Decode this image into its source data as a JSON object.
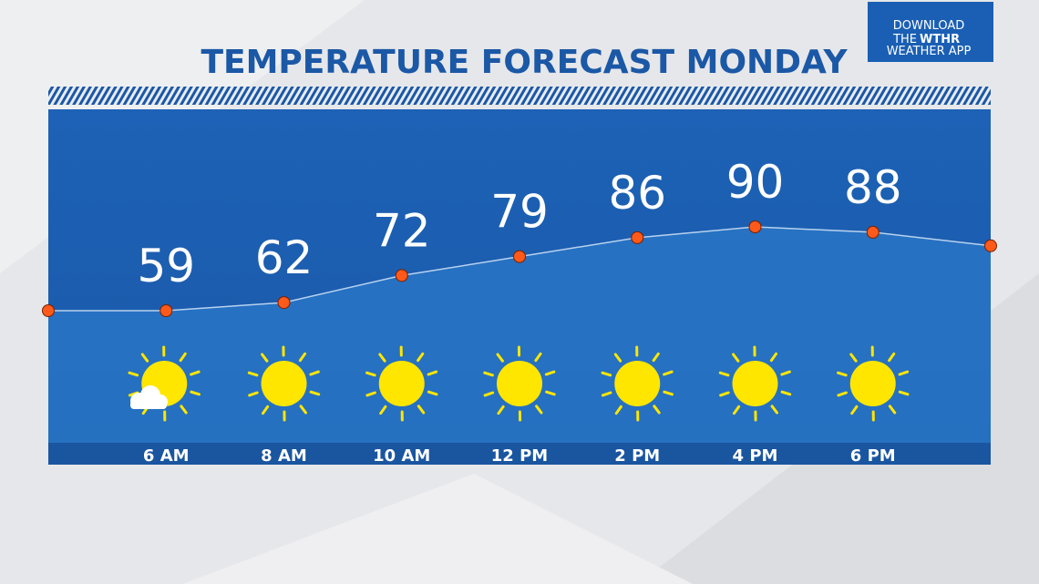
{
  "chart_data": {
    "type": "line",
    "title": "TEMPERATURE FORECAST MONDAY",
    "categories": [
      null,
      "6 AM",
      "8 AM",
      "10 AM",
      "12 PM",
      "2 PM",
      "4 PM",
      "6 PM",
      null
    ],
    "values": [
      59,
      59,
      62,
      72,
      79,
      86,
      90,
      88,
      83
    ],
    "color": "#ff5a1a"
  },
  "badge": {
    "line1": "DOWNLOAD",
    "line2": "THE",
    "brand": "WTHR",
    "line3": "WEATHER APP"
  }
}
